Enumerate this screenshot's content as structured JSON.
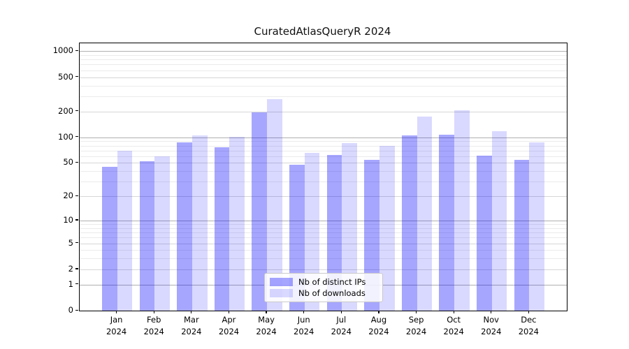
{
  "title": "CuratedAtlasQueryR 2024",
  "chart_data": {
    "type": "bar",
    "title": "CuratedAtlasQueryR 2024",
    "year_label": "2024",
    "months": [
      "Jan",
      "Feb",
      "Mar",
      "Apr",
      "May",
      "Jun",
      "Jul",
      "Aug",
      "Sep",
      "Oct",
      "Nov",
      "Dec"
    ],
    "categories": [
      "Jan 2024",
      "Feb 2024",
      "Mar 2024",
      "Apr 2024",
      "May 2024",
      "Jun 2024",
      "Jul 2024",
      "Aug 2024",
      "Sep 2024",
      "Oct 2024",
      "Nov 2024",
      "Dec 2024"
    ],
    "series": [
      {
        "name": "Nb of distinct IPs",
        "color": "rgba(0,0,255,0.35)",
        "values": [
          45,
          52,
          87,
          77,
          195,
          48,
          62,
          54,
          105,
          107,
          61,
          54
        ]
      },
      {
        "name": "Nb of downloads",
        "color": "rgba(0,0,255,0.15)",
        "values": [
          70,
          60,
          105,
          101,
          277,
          66,
          86,
          79,
          175,
          207,
          118,
          87
        ]
      }
    ],
    "y_scale": "log10(value+1)",
    "y_ticks": [
      0,
      1,
      2,
      5,
      10,
      20,
      50,
      100,
      200,
      500,
      1000
    ],
    "y_minor_ticks": [
      3,
      4,
      6,
      7,
      8,
      9,
      30,
      40,
      60,
      70,
      80,
      90,
      300,
      400,
      600,
      700,
      800,
      900
    ],
    "ylim": [
      0,
      1234
    ],
    "grid": true,
    "legend_position": "lower center",
    "colors": {
      "bar_dark": "rgba(0,0,255,0.35)",
      "bar_light": "rgba(0,0,255,0.15)",
      "grid_decade": "#b0b0b0",
      "grid_major": "#d6d6d6",
      "grid_minor": "#ebebeb",
      "axis": "#000000"
    }
  }
}
